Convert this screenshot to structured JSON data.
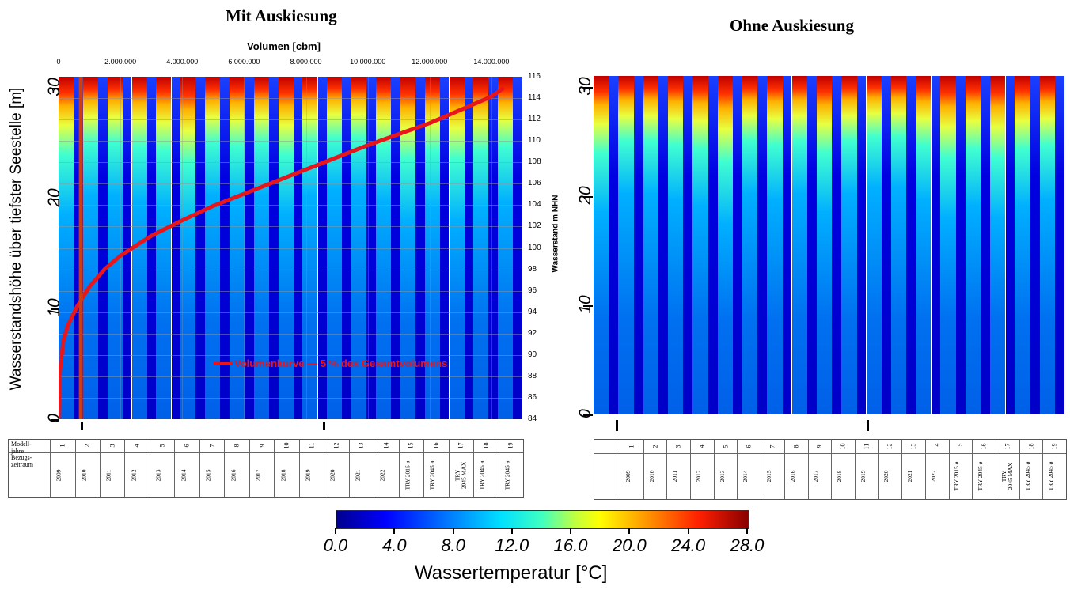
{
  "titles": {
    "left": "Mit Auskiesung",
    "right": "Ohne Auskiesung"
  },
  "left_axes": {
    "top_label": "Volumen [cbm]",
    "top_ticks": [
      "0",
      "2.000.000",
      "4.000.000",
      "6.000.000",
      "8.000.000",
      "10.000.000",
      "12.000.000",
      "14.000.000"
    ],
    "left_label": "Wasserstandshöhe über tiefster Seestelle [m]",
    "left_ticks": [
      "0",
      "10",
      "20",
      "30"
    ],
    "right_label": "Wasserstand m NHN",
    "right_ticks": [
      "116",
      "114",
      "112",
      "110",
      "108",
      "106",
      "104",
      "102",
      "100",
      "98",
      "96",
      "94",
      "92",
      "90",
      "88",
      "86",
      "84"
    ]
  },
  "right_axes": {
    "left_ticks": [
      "0",
      "10",
      "20",
      "30"
    ]
  },
  "legend": {
    "text": "Volumenkurve — 5 % des Gesamtvolumens",
    "curve_color": "#e8161b"
  },
  "table": {
    "row1_label": "Modell-\njahre",
    "row2_label": "Bezugs-\nzeitraum",
    "model_years": [
      "1",
      "2",
      "3",
      "4",
      "5",
      "6",
      "7",
      "8",
      "9",
      "10",
      "11",
      "12",
      "13",
      "14",
      "15",
      "16",
      "17",
      "18",
      "19"
    ],
    "periods": [
      "2009",
      "2010",
      "2011",
      "2012",
      "2013",
      "2014",
      "2015",
      "2016",
      "2017",
      "2018",
      "2019",
      "2020",
      "2021",
      "2022",
      "TRY 2015 ø",
      "TRY 2045 ø",
      "TRY\n2045 MAX",
      "TRY 2045 ø",
      "TRY 2045 ø"
    ]
  },
  "colorbar": {
    "ticks": [
      "0.0",
      "4.0",
      "8.0",
      "12.0",
      "16.0",
      "20.0",
      "24.0",
      "28.0"
    ],
    "label": "Wassertemperatur [°C]",
    "min": 0,
    "max": 28
  },
  "chart_data": [
    {
      "type": "line",
      "title": "Mit Auskiesung",
      "xlabel": "Volumen [cbm]",
      "ylabel": "Wasserstandshöhe über tiefster Seestelle [m]",
      "y2label": "Wasserstand m NHN",
      "xlim": [
        0,
        15000000
      ],
      "ylim": [
        0,
        31
      ],
      "y2lim": [
        84,
        116
      ],
      "series": [
        {
          "name": "Volumenkurve",
          "x": [
            0,
            30000,
            150000,
            300000,
            600000,
            1000000,
            1500000,
            2000000,
            3000000,
            4000000,
            5000000,
            6000000,
            7000000,
            8000000,
            9000000,
            10000000,
            11000000,
            12000000,
            13000000,
            14000000,
            14400000
          ],
          "y": [
            0,
            4,
            7,
            8.5,
            10.2,
            12,
            13.6,
            14.8,
            16.6,
            18,
            19.3,
            20.4,
            21.5,
            22.6,
            23.7,
            24.8,
            25.8,
            26.8,
            28,
            29.2,
            30
          ]
        },
        {
          "name": "5 % des Gesamtvolumens",
          "x": [
            720000,
            720000
          ],
          "y": [
            0,
            31
          ]
        }
      ],
      "heatmap": {
        "zlabel": "Wassertemperatur [°C]",
        "zlim": [
          0,
          28
        ],
        "columns": [
          "1",
          "2",
          "3",
          "4",
          "5",
          "6",
          "7",
          "8",
          "9",
          "10",
          "11",
          "12",
          "13",
          "14",
          "15",
          "16",
          "17",
          "18",
          "19"
        ]
      }
    },
    {
      "type": "heatmap",
      "title": "Ohne Auskiesung",
      "ylim": [
        0,
        31
      ],
      "zlabel": "Wassertemperatur [°C]",
      "zlim": [
        0,
        28
      ],
      "columns": [
        "1",
        "2",
        "3",
        "4",
        "5",
        "6",
        "7",
        "8",
        "9",
        "10",
        "11",
        "12",
        "13",
        "14",
        "15",
        "16",
        "17",
        "18",
        "19"
      ]
    }
  ]
}
